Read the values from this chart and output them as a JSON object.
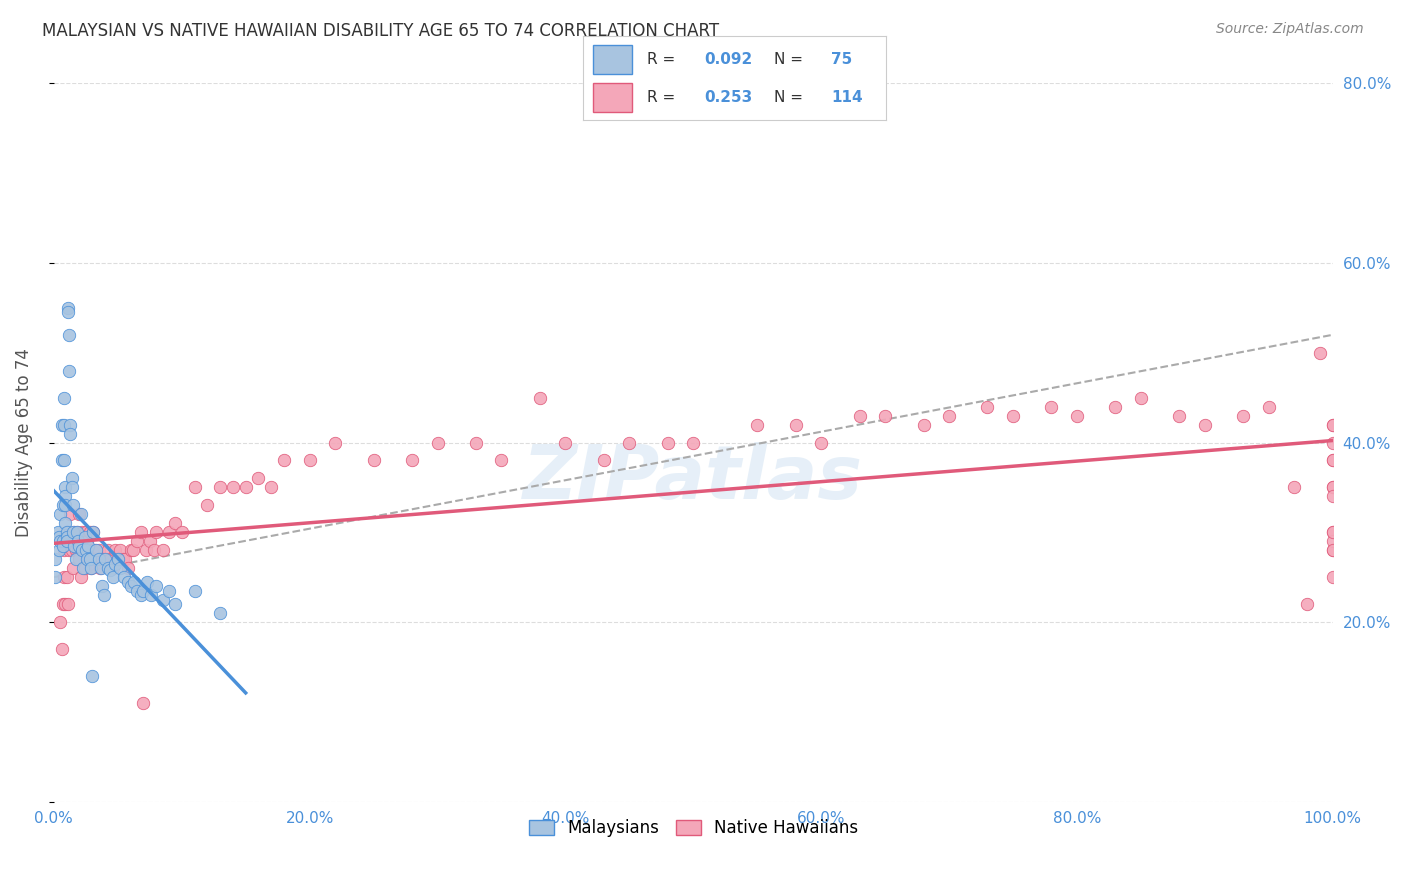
{
  "title": "MALAYSIAN VS NATIVE HAWAIIAN DISABILITY AGE 65 TO 74 CORRELATION CHART",
  "source": "Source: ZipAtlas.com",
  "ylabel": "Disability Age 65 to 74",
  "legend_label1": "Malaysians",
  "legend_label2": "Native Hawaiians",
  "R1": "0.092",
  "N1": "75",
  "R2": "0.253",
  "N2": "114",
  "xlim": [
    0.0,
    1.0
  ],
  "ylim": [
    0.0,
    0.8
  ],
  "x_ticks": [
    0.0,
    0.2,
    0.4,
    0.6,
    0.8,
    1.0
  ],
  "x_tick_labels": [
    "0.0%",
    "20.0%",
    "40.0%",
    "60.0%",
    "80.0%",
    "100.0%"
  ],
  "y_ticks": [
    0.0,
    0.2,
    0.4,
    0.6,
    0.8
  ],
  "y_tick_labels": [
    "",
    "20.0%",
    "40.0%",
    "60.0%",
    "80.0%"
  ],
  "color_malaysian": "#a8c4e0",
  "color_hawaiian": "#f4a7b9",
  "color_line_malaysian": "#4a90d9",
  "color_line_hawaiian": "#e05a7a",
  "color_dashed": "#aaaaaa",
  "background_color": "#ffffff",
  "grid_color": "#dddddd",
  "title_color": "#333333",
  "source_color": "#888888",
  "tick_color": "#4a90d9",
  "scatter_size": 80,
  "malaysian_x": [
    0.001,
    0.001,
    0.003,
    0.004,
    0.004,
    0.005,
    0.005,
    0.006,
    0.006,
    0.007,
    0.007,
    0.007,
    0.008,
    0.008,
    0.008,
    0.009,
    0.009,
    0.009,
    0.009,
    0.01,
    0.01,
    0.01,
    0.011,
    0.011,
    0.012,
    0.012,
    0.013,
    0.013,
    0.014,
    0.014,
    0.015,
    0.015,
    0.016,
    0.017,
    0.018,
    0.019,
    0.02,
    0.021,
    0.022,
    0.023,
    0.024,
    0.025,
    0.026,
    0.027,
    0.028,
    0.029,
    0.03,
    0.031,
    0.033,
    0.035,
    0.037,
    0.038,
    0.039,
    0.04,
    0.042,
    0.044,
    0.046,
    0.048,
    0.05,
    0.052,
    0.055,
    0.058,
    0.06,
    0.063,
    0.065,
    0.068,
    0.07,
    0.073,
    0.076,
    0.08,
    0.085,
    0.09,
    0.095,
    0.11,
    0.13
  ],
  "malaysian_y": [
    0.27,
    0.25,
    0.3,
    0.295,
    0.28,
    0.32,
    0.29,
    0.42,
    0.38,
    0.33,
    0.29,
    0.285,
    0.45,
    0.42,
    0.38,
    0.35,
    0.34,
    0.33,
    0.31,
    0.3,
    0.295,
    0.29,
    0.55,
    0.545,
    0.52,
    0.48,
    0.42,
    0.41,
    0.36,
    0.35,
    0.33,
    0.3,
    0.285,
    0.27,
    0.3,
    0.29,
    0.285,
    0.32,
    0.28,
    0.26,
    0.295,
    0.28,
    0.27,
    0.285,
    0.27,
    0.26,
    0.14,
    0.3,
    0.28,
    0.27,
    0.26,
    0.24,
    0.23,
    0.27,
    0.26,
    0.258,
    0.25,
    0.265,
    0.27,
    0.26,
    0.25,
    0.245,
    0.24,
    0.245,
    0.235,
    0.23,
    0.235,
    0.245,
    0.23,
    0.24,
    0.225,
    0.235,
    0.22,
    0.235,
    0.21
  ],
  "hawaiian_x": [
    0.005,
    0.006,
    0.007,
    0.008,
    0.008,
    0.009,
    0.01,
    0.01,
    0.011,
    0.012,
    0.013,
    0.014,
    0.015,
    0.016,
    0.017,
    0.018,
    0.019,
    0.02,
    0.02,
    0.021,
    0.022,
    0.023,
    0.024,
    0.025,
    0.026,
    0.027,
    0.028,
    0.029,
    0.03,
    0.031,
    0.032,
    0.033,
    0.034,
    0.035,
    0.036,
    0.038,
    0.04,
    0.042,
    0.044,
    0.046,
    0.048,
    0.05,
    0.052,
    0.054,
    0.056,
    0.058,
    0.06,
    0.062,
    0.065,
    0.068,
    0.07,
    0.072,
    0.075,
    0.078,
    0.08,
    0.085,
    0.09,
    0.095,
    0.1,
    0.11,
    0.12,
    0.13,
    0.14,
    0.15,
    0.16,
    0.17,
    0.18,
    0.2,
    0.22,
    0.25,
    0.28,
    0.3,
    0.33,
    0.35,
    0.38,
    0.4,
    0.43,
    0.45,
    0.48,
    0.5,
    0.55,
    0.58,
    0.6,
    0.63,
    0.65,
    0.68,
    0.7,
    0.73,
    0.75,
    0.78,
    0.8,
    0.83,
    0.85,
    0.88,
    0.9,
    0.93,
    0.95,
    0.97,
    0.98,
    0.99,
    1.0,
    1.0,
    1.0,
    1.0,
    1.0,
    1.0,
    1.0,
    1.0,
    1.0,
    1.0,
    1.0,
    1.0,
    1.0,
    1.0
  ],
  "hawaiian_y": [
    0.2,
    0.17,
    0.22,
    0.25,
    0.28,
    0.22,
    0.25,
    0.3,
    0.22,
    0.28,
    0.32,
    0.28,
    0.26,
    0.3,
    0.28,
    0.3,
    0.28,
    0.32,
    0.27,
    0.25,
    0.3,
    0.28,
    0.26,
    0.3,
    0.29,
    0.27,
    0.3,
    0.26,
    0.28,
    0.3,
    0.28,
    0.27,
    0.27,
    0.28,
    0.26,
    0.27,
    0.27,
    0.28,
    0.27,
    0.26,
    0.28,
    0.27,
    0.28,
    0.27,
    0.27,
    0.26,
    0.28,
    0.28,
    0.29,
    0.3,
    0.11,
    0.28,
    0.29,
    0.28,
    0.3,
    0.28,
    0.3,
    0.31,
    0.3,
    0.35,
    0.33,
    0.35,
    0.35,
    0.35,
    0.36,
    0.35,
    0.38,
    0.38,
    0.4,
    0.38,
    0.38,
    0.4,
    0.4,
    0.38,
    0.45,
    0.4,
    0.38,
    0.4,
    0.4,
    0.4,
    0.42,
    0.42,
    0.4,
    0.43,
    0.43,
    0.42,
    0.43,
    0.44,
    0.43,
    0.44,
    0.43,
    0.44,
    0.45,
    0.43,
    0.42,
    0.43,
    0.44,
    0.35,
    0.22,
    0.5,
    0.42,
    0.42,
    0.4,
    0.3,
    0.25,
    0.28,
    0.29,
    0.28,
    0.3,
    0.35,
    0.38,
    0.38,
    0.35,
    0.34
  ]
}
